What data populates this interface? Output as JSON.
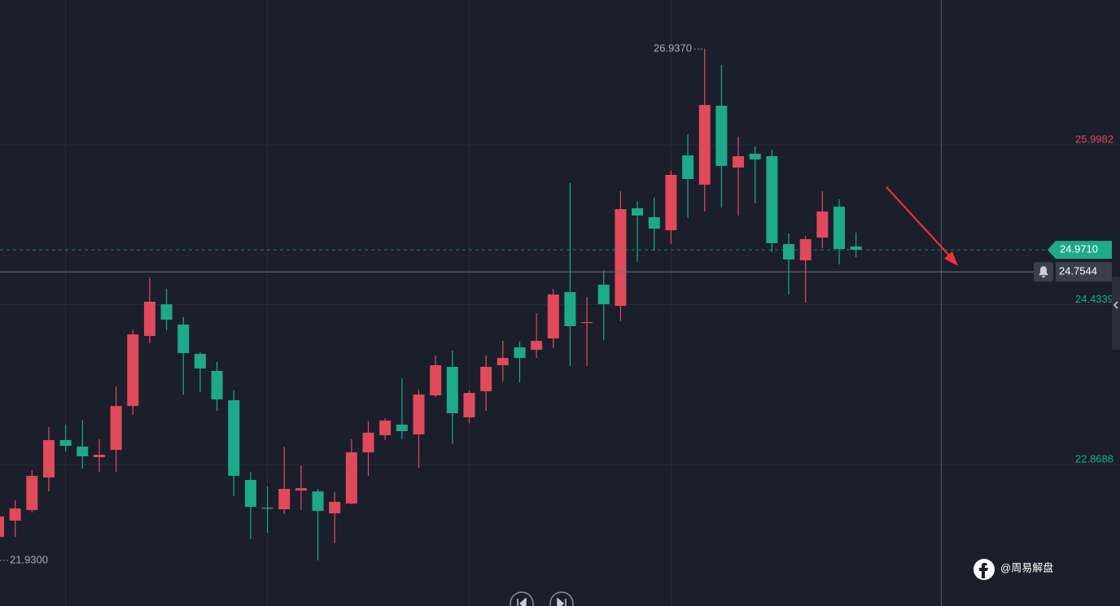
{
  "chart_data": {
    "type": "candlestick",
    "up_color": "#e04a5c",
    "down_color": "#1ea98b",
    "ylim": [
      21.484,
      27.416
    ],
    "yticks": [
      25.9982,
      24.4339,
      22.8688
    ],
    "ytick_colors": [
      "#e04a5c",
      "#1ea98b",
      "#1ea98b"
    ],
    "grid": true,
    "open": [
      22.16,
      22.32,
      22.423,
      22.742,
      23.108,
      23.044,
      22.941,
      23.012,
      23.442,
      24.127,
      24.438,
      24.239,
      23.952,
      23.785,
      23.498,
      22.718,
      22.447,
      22.431,
      22.614,
      22.606,
      22.391,
      22.487,
      22.989,
      23.156,
      23.259,
      23.164,
      23.546,
      23.825,
      23.331,
      23.586,
      23.841,
      24.016,
      23.992,
      24.103,
      24.557,
      24.255,
      24.629,
      24.422,
      25.377,
      25.29,
      25.162,
      25.895,
      25.608,
      26.381,
      25.776,
      25.911,
      25.887,
      25.027,
      24.868,
      25.091,
      25.393,
      25.003
    ],
    "high": [
      22.519,
      22.519,
      22.813,
      23.236,
      23.259,
      23.307,
      23.116,
      23.634,
      24.191,
      24.701,
      24.589,
      24.311,
      23.968,
      23.872,
      23.594,
      22.797,
      22.654,
      23.044,
      22.861,
      22.63,
      22.598,
      23.116,
      23.291,
      23.323,
      23.713,
      23.602,
      23.936,
      23.984,
      23.594,
      23.936,
      24.079,
      24.072,
      24.35,
      24.589,
      25.624,
      24.51,
      24.772,
      25.545,
      25.441,
      25.481,
      25.744,
      26.102,
      26.937,
      26.779,
      26.078,
      25.983,
      25.951,
      25.131,
      25.107,
      25.545,
      25.465,
      25.139
    ],
    "low": [
      22.121,
      22.16,
      22.399,
      22.606,
      22.997,
      22.829,
      22.797,
      22.797,
      23.355,
      24.056,
      24.183,
      23.554,
      23.578,
      23.395,
      22.559,
      22.137,
      22.2,
      22.383,
      22.423,
      21.93,
      22.097,
      22.479,
      22.758,
      23.108,
      23.116,
      22.837,
      23.53,
      23.068,
      23.275,
      23.395,
      23.681,
      23.673,
      23.912,
      24.008,
      23.833,
      23.833,
      24.087,
      24.271,
      24.852,
      24.963,
      25.027,
      25.282,
      25.346,
      25.385,
      25.306,
      25.425,
      24.948,
      24.533,
      24.454,
      24.987,
      24.828,
      24.9
    ],
    "close": [
      22.36,
      22.439,
      22.758,
      23.108,
      23.052,
      22.949,
      22.965,
      23.442,
      24.143,
      24.462,
      24.287,
      23.96,
      23.809,
      23.506,
      22.758,
      22.455,
      22.439,
      22.63,
      22.638,
      22.415,
      22.503,
      22.989,
      23.18,
      23.299,
      23.196,
      23.554,
      23.841,
      23.371,
      23.57,
      23.825,
      23.912,
      23.912,
      24.079,
      24.533,
      24.223,
      24.263,
      24.438,
      25.369,
      25.306,
      25.178,
      25.704,
      25.664,
      26.389,
      25.792,
      25.887,
      25.855,
      25.035,
      24.876,
      25.075,
      25.346,
      24.979,
      24.971
    ],
    "high_label": {
      "value": 26.937,
      "label": "26.9370"
    },
    "low_label": {
      "value": 21.93,
      "label": "21.9300"
    },
    "last_price": {
      "value": 24.971,
      "label": "24.9710",
      "color": "#1ea98b"
    },
    "alert_price": {
      "value": 24.7544,
      "label": "24.7544"
    },
    "watermark": "@周易解盘"
  }
}
